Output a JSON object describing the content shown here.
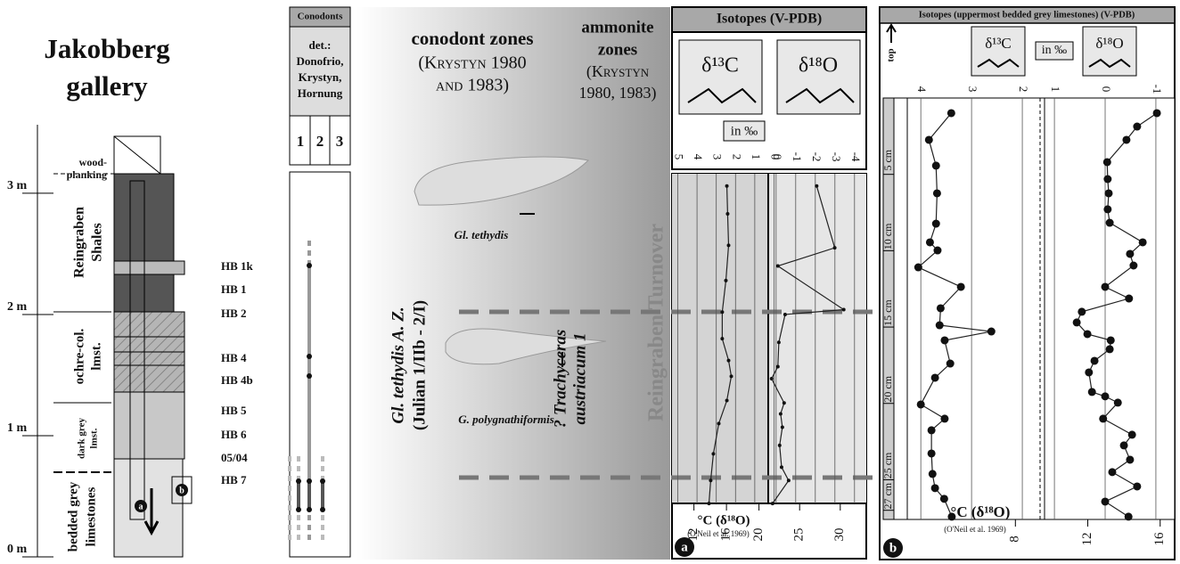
{
  "title": [
    "Jakobberg",
    "gallery"
  ],
  "column": {
    "height_lim": [
      0,
      3.47
    ],
    "height_ticks": [
      {
        "value": 3,
        "label": "3 m"
      },
      {
        "value": 2,
        "label": "2 m"
      },
      {
        "value": 1,
        "label": "1 m"
      },
      {
        "value": 0,
        "label": "0 m"
      }
    ],
    "units": [
      [
        "wood-",
        "planking"
      ],
      [
        "Reingraben",
        "Shales"
      ],
      [
        "ochre-col.",
        "lmst."
      ],
      [
        "dark grey",
        "lmst."
      ],
      [
        "bedded grey",
        "limestones"
      ]
    ],
    "samples": [
      "HB 1k",
      "HB 1",
      "HB 2",
      "HB 4",
      "HB 4b",
      "HB 5",
      "HB 6",
      "05/04",
      "HB 7"
    ],
    "markers": [
      "a",
      "b"
    ]
  },
  "conodonts": {
    "header": "Conodonts",
    "det": [
      "det.:",
      "Donofrio,",
      "Krystyn,",
      "Hornung"
    ],
    "columns": [
      "1",
      "2",
      "3"
    ]
  },
  "zones": {
    "conodont_title": "conodont zones",
    "conodont_ref": [
      "(Krystyn 1980",
      "and 1983)"
    ],
    "ammonite_title": [
      "ammonite",
      "zones"
    ],
    "ammonite_ref": [
      "(Krystyn",
      "1980, 1983)"
    ],
    "conodont_zone": "Gl. tethydis  A. Z.",
    "conodont_zone_age": "(Julian 1/IIb - 2/I)",
    "ammonite_zone": [
      "? Trachyceras",
      "austriacum 1"
    ],
    "turnover": "Reingraben Turnover",
    "fossils": [
      "Gl. tethydis",
      "G. polygnathiformis"
    ]
  },
  "panel_a": {
    "title": "Isotopes (V-PDB)",
    "unit": "in ‰",
    "label": "a",
    "temp_label": "°C (δ¹⁸O)",
    "temp_ref": "(O'Neil et al. 1969)",
    "temp_lim": [
      9.3,
      33.2
    ],
    "temp_ticks": [
      12,
      16,
      20,
      25,
      30
    ],
    "series": [
      {
        "name": "δ¹³C",
        "xlim": [
          5.3,
          0.3
        ],
        "xticks": [
          5,
          4,
          3,
          2,
          1,
          0
        ],
        "heights": [
          3.06,
          2.83,
          2.57,
          2.28,
          2.02,
          1.8,
          1.62,
          1.49,
          1.29,
          1.1,
          0.85,
          0.63,
          0.44
        ],
        "values": [
          2.45,
          2.41,
          2.36,
          2.5,
          2.69,
          2.69,
          2.36,
          2.22,
          2.45,
          2.87,
          3.15,
          3.29,
          3.38
        ]
      },
      {
        "name": "δ¹⁸O",
        "xlim": [
          0.4,
          -4.6
        ],
        "xticks": [
          0,
          -1,
          -2,
          -3,
          -4
        ],
        "heights": [
          3.06,
          2.55,
          2.4,
          2.04,
          2.0,
          1.77,
          1.57,
          1.47,
          1.27,
          1.18,
          1.07,
          0.92,
          0.74,
          0.63,
          0.44
        ],
        "values": [
          -2.07,
          -2.99,
          -0.09,
          -3.45,
          -0.46,
          -0.14,
          -0.09,
          0.23,
          -0.41,
          -0.23,
          -0.32,
          -0.18,
          -0.28,
          -0.64,
          0.18
        ]
      }
    ]
  },
  "panel_b": {
    "title": "Isotopes (uppermost bedded grey limestones) (V-PDB)",
    "unit": "in ‰",
    "label": "b",
    "top_label": "top",
    "depth_lim": [
      0,
      27.6
    ],
    "depth_ticks": [
      {
        "value": 5,
        "label": "5 cm"
      },
      {
        "value": 10,
        "label": "10 cm"
      },
      {
        "value": 15,
        "label": "15 cm"
      },
      {
        "value": 20,
        "label": "20 cm"
      },
      {
        "value": 25,
        "label": "25 cm"
      },
      {
        "value": 27,
        "label": "27 cm"
      }
    ],
    "temp_label": "°C (δ¹⁸O)",
    "temp_ref": "(O'Neil et al. 1969)",
    "temp_lim": [
      0.5,
      16.8
    ],
    "temp_ticks": [
      8,
      12,
      16
    ],
    "series": [
      {
        "name": "δ¹³C",
        "xlim": [
          4.53,
          1.65
        ],
        "xticks": [
          4,
          3,
          2
        ],
        "depths": [
          0.99,
          2.74,
          4.43,
          6.24,
          8.23,
          9.45,
          9.98,
          11.09,
          12.37,
          13.77,
          14.88,
          15.29,
          15.87,
          17.39,
          18.32,
          20.07,
          21.0,
          21.76,
          23.28,
          24.62,
          25.55,
          26.25,
          27.42
        ],
        "values": [
          3.4,
          3.84,
          3.7,
          3.68,
          3.7,
          3.82,
          3.67,
          4.05,
          3.21,
          3.61,
          3.63,
          2.61,
          3.53,
          3.42,
          3.72,
          4.0,
          3.53,
          3.79,
          3.79,
          3.77,
          3.72,
          3.54,
          3.39
        ]
      },
      {
        "name": "δ¹⁸O",
        "xlim": [
          1.23,
          -1.37
        ],
        "xticks": [
          1,
          0,
          -1
        ],
        "depths": [
          0.99,
          1.87,
          2.74,
          4.2,
          5.31,
          6.24,
          7.29,
          8.17,
          9.45,
          10.21,
          10.97,
          12.37,
          13.13,
          14.0,
          14.7,
          15.46,
          15.87,
          16.45,
          17.21,
          17.97,
          19.25,
          19.54,
          19.95,
          21.0,
          22.05,
          22.75,
          23.69,
          24.5,
          25.44,
          26.43,
          27.42
        ],
        "values": [
          -1.02,
          -0.63,
          -0.42,
          -0.04,
          -0.05,
          -0.07,
          -0.05,
          -0.09,
          -0.74,
          -0.49,
          -0.56,
          0,
          -0.47,
          0.46,
          0.56,
          0.35,
          -0.11,
          -0.09,
          0.21,
          0.32,
          0.26,
          0,
          -0.25,
          0.04,
          -0.53,
          -0.37,
          -0.49,
          -0.14,
          -0.63,
          0,
          -0.46
        ]
      }
    ]
  }
}
